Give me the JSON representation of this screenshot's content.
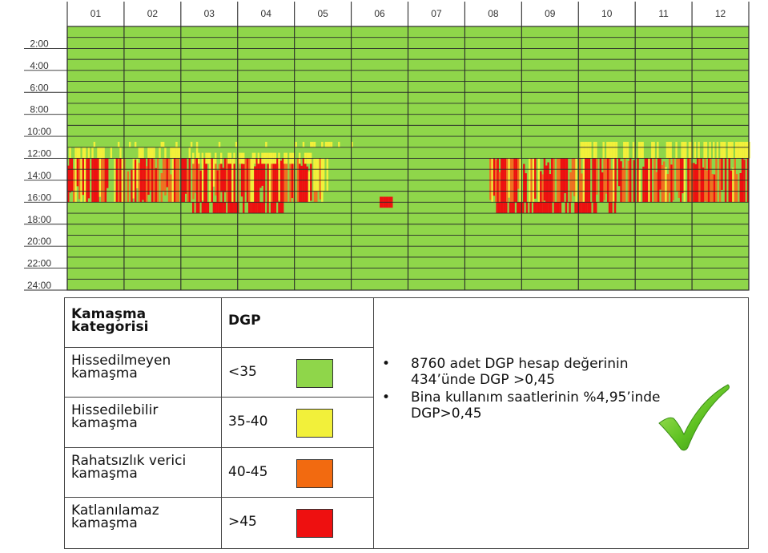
{
  "chart_data": {
    "type": "heatmap",
    "x_tick_labels": [
      "01",
      "02",
      "03",
      "04",
      "05",
      "06",
      "07",
      "08",
      "09",
      "10",
      "11",
      "12"
    ],
    "y_tick_labels": [
      "2:00",
      "4:00",
      "6:00",
      "8:00",
      "10:00",
      "12:00",
      "14:00",
      "16:00",
      "18:00",
      "20:00",
      "22:00",
      "24:00"
    ],
    "hours": 24,
    "months": 12,
    "colors": {
      "green": "#8fd64a",
      "yellow": "#f2f03a",
      "orange": "#f07020",
      "red": "#ee1010"
    },
    "bands": [
      {
        "month_start": 0.0,
        "month_end": 5.0,
        "hour_start": 10.5,
        "hour_end": 11.0,
        "color": "yellow",
        "density": 0.15,
        "seed": 3
      },
      {
        "month_start": 0.0,
        "month_end": 2.3,
        "hour_start": 11.0,
        "hour_end": 12.0,
        "color": "yellow",
        "density": 0.55,
        "seed": 5
      },
      {
        "month_start": 0.0,
        "month_end": 4.5,
        "hour_start": 12.0,
        "hour_end": 16.0,
        "color": "mix",
        "density": 0.85,
        "seed": 7
      },
      {
        "month_start": 2.2,
        "month_end": 4.3,
        "hour_start": 11.5,
        "hour_end": 12.5,
        "color": "yellow",
        "density": 0.6,
        "seed": 9
      },
      {
        "month_start": 4.3,
        "month_end": 4.6,
        "hour_start": 12.0,
        "hour_end": 15.0,
        "color": "yellow",
        "density": 0.5,
        "seed": 11
      },
      {
        "month_start": 2.2,
        "month_end": 3.8,
        "hour_start": 16.0,
        "hour_end": 17.0,
        "color": "red",
        "density": 0.75,
        "seed": 13
      },
      {
        "month_start": 5.5,
        "month_end": 5.7,
        "hour_start": 15.5,
        "hour_end": 16.5,
        "color": "red",
        "density": 1.0,
        "seed": 15
      },
      {
        "month_start": 7.4,
        "month_end": 12.0,
        "hour_start": 12.0,
        "hour_end": 16.0,
        "color": "mix",
        "density": 0.85,
        "seed": 17
      },
      {
        "month_start": 8.9,
        "month_end": 12.0,
        "hour_start": 10.5,
        "hour_end": 12.0,
        "color": "yellow",
        "density": 0.55,
        "seed": 19
      },
      {
        "month_start": 7.55,
        "month_end": 9.3,
        "hour_start": 16.0,
        "hour_end": 17.0,
        "color": "red",
        "density": 0.85,
        "seed": 21
      },
      {
        "month_start": 9.3,
        "month_end": 9.75,
        "hour_start": 16.0,
        "hour_end": 17.0,
        "color": "red",
        "density": 0.45,
        "seed": 23
      }
    ]
  },
  "legend": {
    "header_category": "Kamaşma kategorisi",
    "header_dgp": "DGP",
    "rows": [
      {
        "category": "Hissedilmeyen kamaşma",
        "dgp": "<35",
        "color": "#8fd64a"
      },
      {
        "category": "Hissedilebilir kamaşma",
        "dgp": "35-40",
        "color": "#f2f03a"
      },
      {
        "category": "Rahatsızlık verici kamaşma",
        "dgp": "40-45",
        "color": "#f26a10"
      },
      {
        "category": "Katlanılamaz kamaşma",
        "dgp": ">45",
        "color": "#ee1010"
      }
    ]
  },
  "notes": {
    "bullet": "•",
    "items": [
      "8760 adet DGP hesap değerinin 434’ünde DGP >0,45",
      "Bina kullanım saatlerinin %4,95’inde DGP>0,45"
    ]
  },
  "check_icon": "green-checkmark-icon"
}
